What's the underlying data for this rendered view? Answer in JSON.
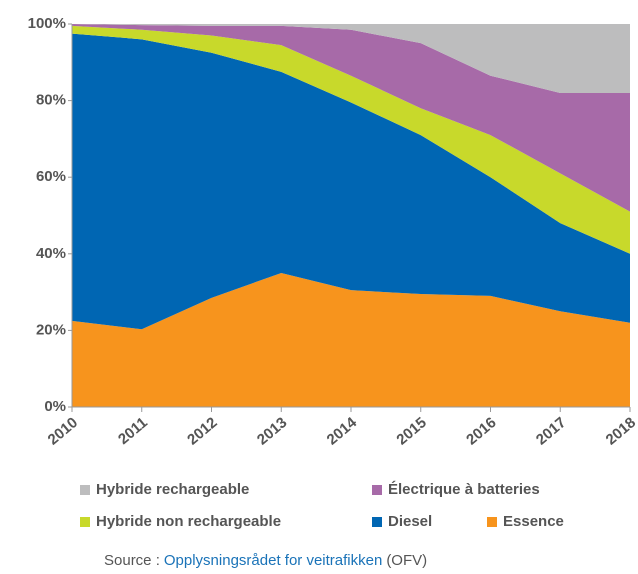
{
  "chart_data": {
    "type": "stacked_area",
    "categories": [
      "2010",
      "2011",
      "2012",
      "2013",
      "2014",
      "2015",
      "2016",
      "2017",
      "2018"
    ],
    "series": [
      {
        "name": "Essence",
        "color": "#f7941d",
        "values": [
          22.5,
          20.3,
          28.5,
          35,
          30.5,
          29.5,
          29,
          25,
          22
        ]
      },
      {
        "name": "Diesel",
        "color": "#0066b3",
        "values": [
          75,
          75.7,
          64,
          52.5,
          49,
          41.5,
          31,
          23,
          18
        ]
      },
      {
        "name": "Hybride non rechargeable",
        "color": "#c8d92b",
        "values": [
          2,
          2.5,
          4.5,
          7,
          7,
          7,
          11,
          13,
          11
        ]
      },
      {
        "name": "Électrique à batteries",
        "color": "#a76aa8",
        "values": [
          0.5,
          1.2,
          2.5,
          5,
          12,
          17,
          15.5,
          21,
          31
        ]
      },
      {
        "name": "Hybride rechargeable",
        "color": "#bdbdbe",
        "values": [
          0,
          0.3,
          0.5,
          0.5,
          1.5,
          5,
          13.5,
          18,
          18
        ]
      }
    ],
    "ylim": [
      0,
      100
    ],
    "yticks": [
      {
        "value": 0,
        "label": "0%"
      },
      {
        "value": 20,
        "label": "20%"
      },
      {
        "value": 40,
        "label": "40%"
      },
      {
        "value": 60,
        "label": "60%"
      },
      {
        "value": 80,
        "label": "80%"
      },
      {
        "value": 100,
        "label": "100%"
      }
    ],
    "source": {
      "prefix": "Source :",
      "link": "Opplysningsrådet for veitrafikken",
      "suffix": "(OFV)"
    }
  }
}
